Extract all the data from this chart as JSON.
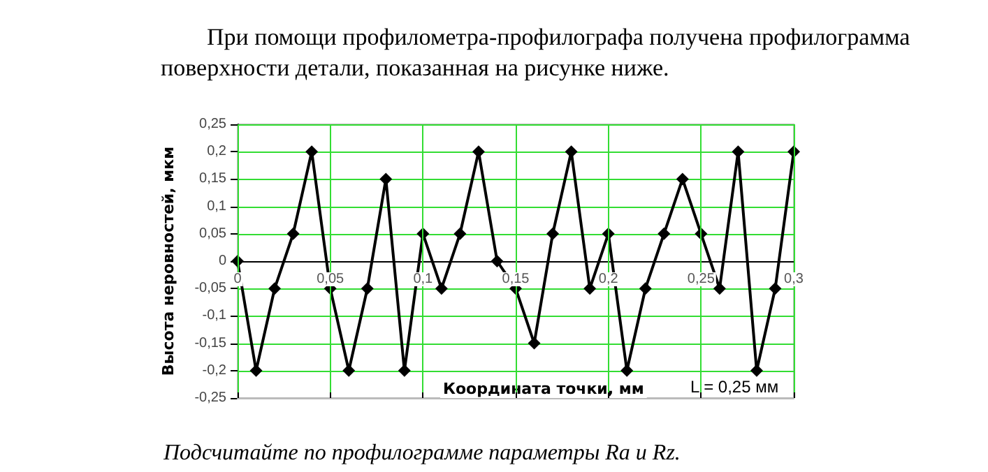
{
  "chart_data": {
    "type": "line",
    "title": "При помощи профилометра-профилографа получена профилограмма поверхности детали, показанная на рисунке ниже.",
    "xlabel": "Координата точки, мм",
    "ylabel": "Высота неровностей, мкм",
    "annotations": [
      "L = 0,25 мм",
      "Подсчитайте по профилограмме параметры Ra и Rz."
    ],
    "x": [
      0,
      0.01,
      0.02,
      0.03,
      0.04,
      0.05,
      0.06,
      0.07,
      0.08,
      0.09,
      0.1,
      0.11,
      0.12,
      0.13,
      0.14,
      0.15,
      0.16,
      0.17,
      0.18,
      0.19,
      0.2,
      0.21,
      0.22,
      0.23,
      0.24,
      0.25,
      0.26,
      0.27,
      0.28,
      0.29,
      0.3
    ],
    "series": [
      {
        "color": "#000000",
        "values": [
          0,
          -0.2,
          -0.05,
          0.05,
          0.2,
          -0.05,
          -0.2,
          -0.05,
          0.15,
          -0.2,
          0.05,
          -0.05,
          0.05,
          0.2,
          0,
          -0.05,
          -0.15,
          0.05,
          0.2,
          -0.05,
          0.05,
          -0.2,
          -0.05,
          0.05,
          0.15,
          0.05,
          -0.05,
          0.2,
          -0.2,
          -0.05,
          0.2
        ]
      }
    ],
    "xlim": [
      0,
      0.3
    ],
    "xticks": [
      0,
      {
        "value": 0.05,
        "label": "0,05"
      },
      {
        "value": 0.1,
        "label": "0,1"
      },
      {
        "value": 0.15,
        "label": "0,15"
      },
      {
        "value": 0.2,
        "label": "0,2"
      },
      {
        "value": 0.25,
        "label": "0,25"
      },
      {
        "value": 0.3,
        "label": "0,3"
      }
    ],
    "ylim": [
      -0.25,
      0.25
    ],
    "yticks": [
      {
        "value": -0.25,
        "label": "-0,25"
      },
      {
        "value": -0.2,
        "label": "-0,2"
      },
      {
        "value": -0.15,
        "label": "-0,15"
      },
      {
        "value": -0.1,
        "label": "-0,1"
      },
      {
        "value": -0.05,
        "label": "-0,05"
      },
      0,
      {
        "value": 0.05,
        "label": "0,05"
      },
      {
        "value": 0.1,
        "label": "0,1"
      },
      {
        "value": 0.15,
        "label": "0,15"
      },
      {
        "value": 0.2,
        "label": "0,2"
      },
      {
        "value": 0.25,
        "label": "0,25"
      }
    ],
    "grid": true,
    "marker": "diamond",
    "line_style": "solid"
  }
}
